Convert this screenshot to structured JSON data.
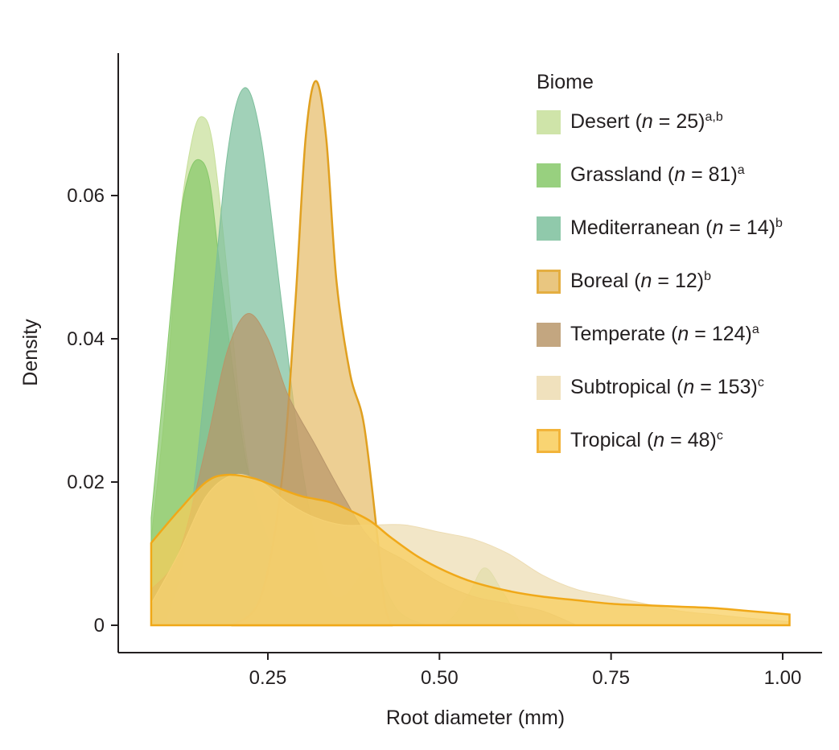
{
  "chart_data": {
    "type": "area",
    "title": "",
    "xlabel": "Root diameter (mm)",
    "ylabel": "Density",
    "xlim": [
      0.08,
      1.02
    ],
    "ylim": [
      0,
      0.078
    ],
    "xticks": [
      "0.25",
      "0.50",
      "0.75",
      "1.00"
    ],
    "xtick_values": [
      0.25,
      0.5,
      0.75,
      1.0
    ],
    "yticks": [
      "0",
      "0.02",
      "0.04",
      "0.06"
    ],
    "ytick_values": [
      0,
      0.02,
      0.04,
      0.06
    ],
    "grid": false,
    "legend": {
      "title": "Biome",
      "placement": "top-right"
    },
    "series": [
      {
        "name": "Desert",
        "n": "25",
        "sup": "a,b",
        "fill": "#c7df9a",
        "stroke": "none",
        "x": [
          0.08,
          0.1,
          0.12,
          0.14,
          0.155,
          0.17,
          0.19,
          0.21,
          0.24,
          0.27,
          0.3,
          0.33,
          0.4,
          0.5,
          0.54,
          0.565,
          0.59,
          0.62
        ],
        "y": [
          0.012,
          0.03,
          0.055,
          0.068,
          0.071,
          0.067,
          0.05,
          0.03,
          0.012,
          0.004,
          0.001,
          0,
          0,
          0,
          0.004,
          0.008,
          0.005,
          0
        ]
      },
      {
        "name": "Grassland",
        "n": "81",
        "sup": "a",
        "fill": "#86c868",
        "stroke": "none",
        "x": [
          0.08,
          0.1,
          0.12,
          0.135,
          0.15,
          0.165,
          0.18,
          0.2,
          0.22,
          0.25,
          0.28,
          0.32,
          0.36,
          0.4,
          0.44,
          0.48
        ],
        "y": [
          0.015,
          0.035,
          0.055,
          0.063,
          0.065,
          0.062,
          0.05,
          0.035,
          0.022,
          0.012,
          0.007,
          0.005,
          0.004,
          0.008,
          0.002,
          0
        ]
      },
      {
        "name": "Mediterranean",
        "n": "14",
        "sup": "b",
        "fill": "#7dbf9c",
        "stroke": "none",
        "x": [
          0.1,
          0.13,
          0.16,
          0.19,
          0.215,
          0.24,
          0.27,
          0.3,
          0.33,
          0.36,
          0.4
        ],
        "y": [
          0,
          0.01,
          0.035,
          0.065,
          0.075,
          0.068,
          0.045,
          0.022,
          0.008,
          0.002,
          0
        ]
      },
      {
        "name": "Boreal",
        "n": "12",
        "sup": "b",
        "fill": "#e6bd6a",
        "stroke": "#e0a020",
        "x": [
          0.2,
          0.24,
          0.27,
          0.29,
          0.305,
          0.32,
          0.335,
          0.35,
          0.37,
          0.39,
          0.41,
          0.42,
          0.43
        ],
        "y": [
          0,
          0.004,
          0.02,
          0.045,
          0.068,
          0.076,
          0.068,
          0.048,
          0.035,
          0.028,
          0.012,
          0.003,
          0
        ]
      },
      {
        "name": "Temperate",
        "n": "124",
        "sup": "a",
        "fill": "#b8966a",
        "stroke": "none",
        "x": [
          0.08,
          0.12,
          0.16,
          0.19,
          0.22,
          0.25,
          0.28,
          0.32,
          0.36,
          0.4,
          0.45,
          0.5,
          0.55,
          0.6,
          0.65,
          0.7
        ],
        "y": [
          0.005,
          0.01,
          0.025,
          0.038,
          0.0435,
          0.04,
          0.032,
          0.025,
          0.018,
          0.012,
          0.009,
          0.006,
          0.004,
          0.003,
          0.002,
          0
        ]
      },
      {
        "name": "Subtropical",
        "n": "153",
        "sup": "c",
        "fill": "#eddcb2",
        "stroke": "none",
        "x": [
          0.08,
          0.12,
          0.16,
          0.2,
          0.24,
          0.28,
          0.32,
          0.36,
          0.4,
          0.45,
          0.5,
          0.55,
          0.6,
          0.65,
          0.7,
          0.75,
          0.8,
          0.85,
          0.9,
          0.95,
          1.01
        ],
        "y": [
          0.003,
          0.01,
          0.018,
          0.021,
          0.02,
          0.017,
          0.015,
          0.014,
          0.014,
          0.014,
          0.013,
          0.012,
          0.01,
          0.007,
          0.005,
          0.004,
          0.003,
          0.002,
          0.0015,
          0.001,
          0.0005
        ]
      },
      {
        "name": "Tropical",
        "n": "48",
        "sup": "c",
        "fill": "#f8cd5a",
        "stroke": "#f0a818",
        "x": [
          0.08,
          0.12,
          0.16,
          0.19,
          0.23,
          0.27,
          0.3,
          0.34,
          0.37,
          0.4,
          0.43,
          0.47,
          0.51,
          0.55,
          0.6,
          0.65,
          0.7,
          0.75,
          0.8,
          0.85,
          0.9,
          0.95,
          1.01
        ],
        "y": [
          0.0115,
          0.016,
          0.02,
          0.021,
          0.0205,
          0.019,
          0.018,
          0.0172,
          0.016,
          0.0145,
          0.0122,
          0.0095,
          0.0075,
          0.006,
          0.0048,
          0.004,
          0.0035,
          0.003,
          0.0028,
          0.0026,
          0.0024,
          0.002,
          0.0015
        ]
      }
    ]
  }
}
